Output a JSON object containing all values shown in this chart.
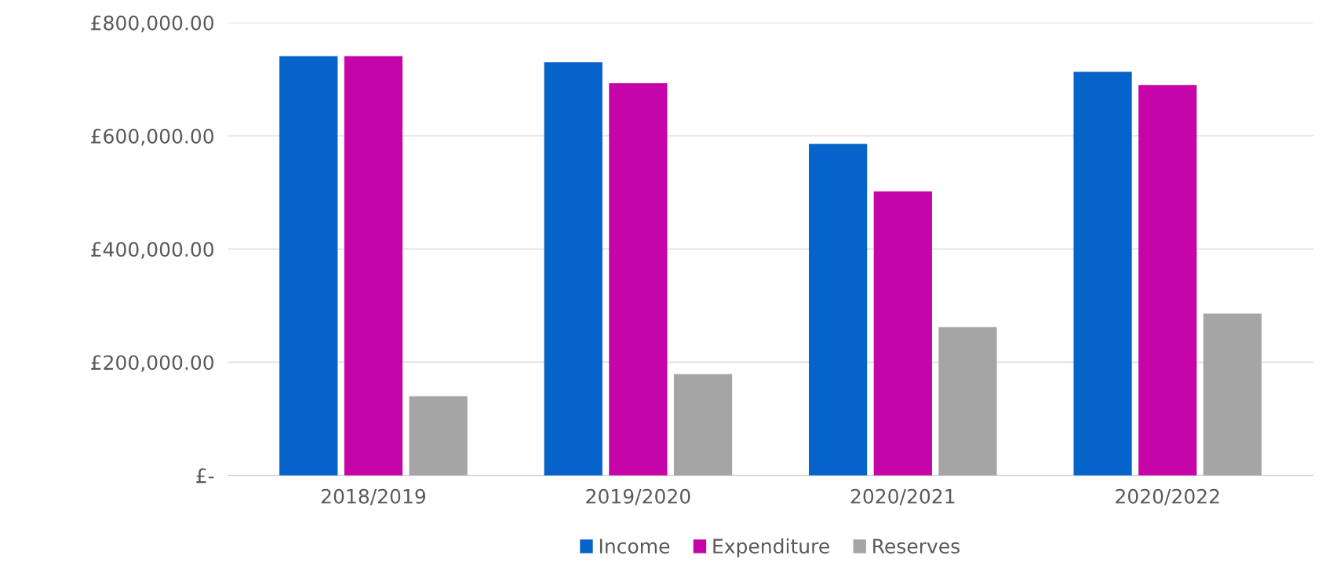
{
  "chart_data": {
    "type": "bar",
    "categories": [
      "2018/2019",
      "2019/2020",
      "2020/2021",
      "2020/2022"
    ],
    "series": [
      {
        "name": "Income",
        "color": "#0563c9",
        "values": [
          741000,
          730000,
          586000,
          713000
        ]
      },
      {
        "name": "Expenditure",
        "color": "#c505a8",
        "values": [
          741000,
          693000,
          502000,
          690000
        ]
      },
      {
        "name": "Reserves",
        "color": "#a5a5a5",
        "values": [
          140000,
          179000,
          262000,
          286000
        ]
      }
    ],
    "ylim": [
      0,
      800000
    ],
    "yticks": [
      {
        "value": 0,
        "label": "£-"
      },
      {
        "value": 200000,
        "label": "£200,000.00"
      },
      {
        "value": 400000,
        "label": "£400,000.00"
      },
      {
        "value": 600000,
        "label": "£600,000.00"
      },
      {
        "value": 800000,
        "label": "£800,000.00"
      }
    ],
    "grid": "y",
    "legend": "bottom"
  }
}
